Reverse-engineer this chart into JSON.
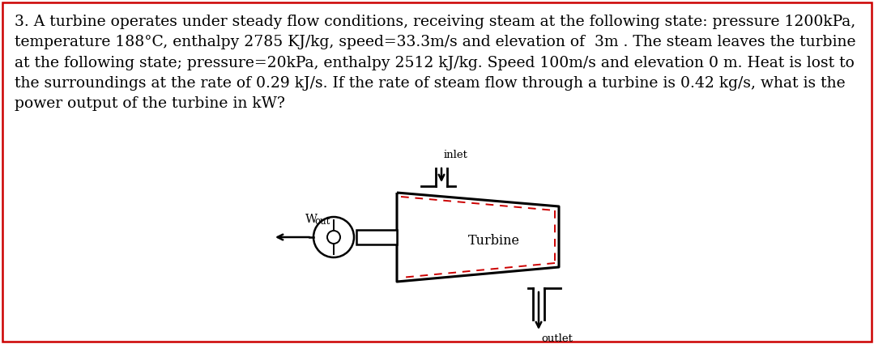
{
  "title_text": "3. A turbine operates under steady flow conditions, receiving steam at the following state: pressure 1200kPa,\ntemperature 188°C, enthalpy 2785 KJ/kg, speed=33.3m/s and elevation of  3m . The steam leaves the turbine\nat the following state; pressure=20kPa, enthalpy 2512 kJ/kg. Speed 100m/s and elevation 0 m. Heat is lost to\nthe surroundings at the rate of 0.29 kJ/s. If the rate of steam flow through a turbine is 0.42 kg/s, what is the\npower output of the turbine in kW?",
  "inlet_label": "inlet",
  "outlet_label": "outlet",
  "turbine_label": "Turbine",
  "wout_label": "W",
  "wout_sub": "out",
  "bg_color": "#ffffff",
  "border_color": "#cc0000",
  "dashed_color": "#cc0000",
  "text_color": "#000000",
  "font_size_body": 13.5,
  "font_size_diagram": 9.5,
  "font_family": "DejaVu Serif"
}
